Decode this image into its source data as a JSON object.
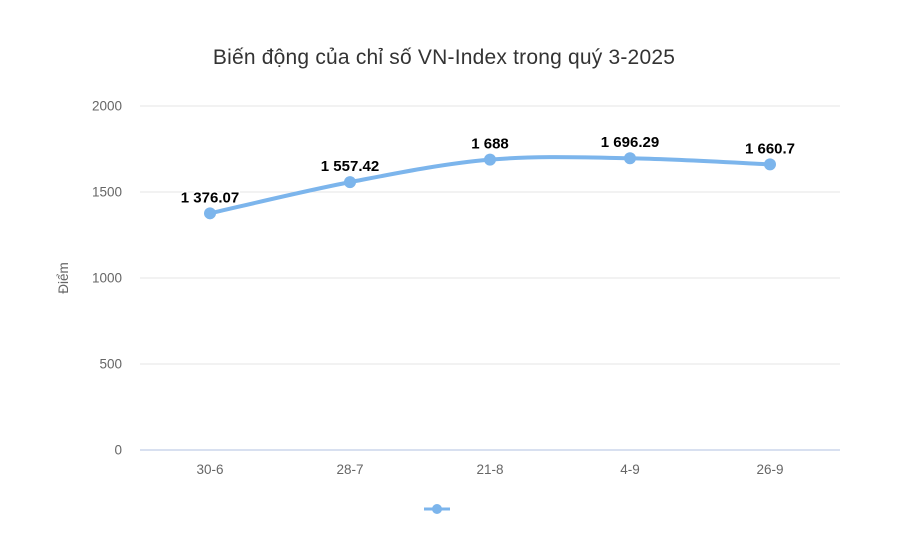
{
  "chart_data": {
    "type": "line",
    "title": "Biến động của chỉ số VN-Index trong quý 3-2025",
    "categories": [
      "30-6",
      "28-7",
      "21-8",
      "4-9",
      "26-9"
    ],
    "values": [
      1376.07,
      1557.42,
      1688,
      1696.29,
      1660.7
    ],
    "data_labels": [
      "1 376.07",
      "1 557.42",
      "1 688",
      "1 696.29",
      "1 660.7"
    ],
    "series": [
      {
        "name": "",
        "values": [
          1376.07,
          1557.42,
          1688,
          1696.29,
          1660.7
        ]
      }
    ],
    "xlabel": "",
    "ylabel": "Điểm",
    "yticks": [
      0,
      500,
      1000,
      1500,
      2000
    ],
    "ylim": [
      0,
      2000
    ],
    "grid": true,
    "legend_position": "bottom-center"
  },
  "colors": {
    "series": "#7cb5ec",
    "grid": "#e6e6e6",
    "axis_line": "#ccd6eb",
    "title_text": "#333333",
    "tick_text": "#666666",
    "data_label_text": "#000000",
    "background": "#ffffff"
  }
}
